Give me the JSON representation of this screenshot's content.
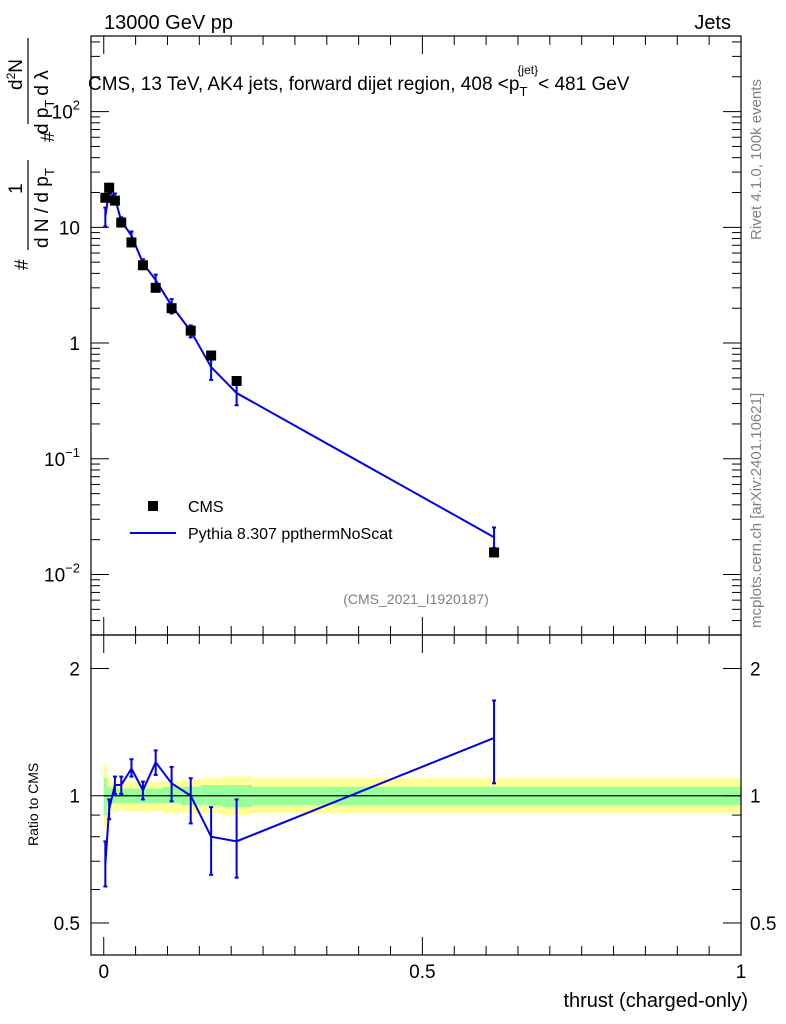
{
  "header": {
    "left": "13000 GeV pp",
    "right": "Jets"
  },
  "side_labels": {
    "rivet": "Rivet 4.1.0,  100k events",
    "mcplots": "mcplots.cern.ch [arXiv:2401.10621]"
  },
  "chart_data": [
    {
      "type": "scatter",
      "panel": "main",
      "title": "CMS, 13 TeV, AK4 jets, forward dijet region, 408 <p_T^{jet}< 481 GeV",
      "title_parts": {
        "pre": "CMS, 13 TeV, AK4 jets, forward dijet region, 408 <p",
        "sup": "{jet}",
        "sub": "T",
        "post": "< 481 GeV"
      },
      "ylabel": "1/dN/dp_T  d²N/dp_T dλ",
      "ylabel_parts": {
        "n1": "1",
        "d1": "d N / d p",
        "n2": "d",
        "n2s": "2",
        "n2b": "N",
        "d2": "d p",
        "d2b": "d λ",
        "sub": "T",
        "hash": "#"
      },
      "yscale": "log",
      "ylim": [
        0.003,
        450
      ],
      "xlim": [
        -0.02,
        1.0
      ],
      "y_ticks": [
        {
          "value": 100,
          "base": "10",
          "exp": "2"
        },
        {
          "value": 10,
          "base": "10",
          "exp": ""
        },
        {
          "value": 1,
          "base": "1",
          "exp": ""
        },
        {
          "value": 0.1,
          "base": "10",
          "exp": "−1"
        },
        {
          "value": 0.01,
          "base": "10",
          "exp": "−2"
        }
      ],
      "watermark": "(CMS_2021_I1920187)",
      "legend": {
        "position": "middle-left",
        "entries": [
          "CMS",
          "Pythia 8.307 ppthermNoScat"
        ]
      },
      "series": [
        {
          "name": "CMS",
          "style": "black-square-markers",
          "x": [
            0.0025,
            0.0085,
            0.0175,
            0.0275,
            0.0435,
            0.0615,
            0.0815,
            0.1065,
            0.1365,
            0.1685,
            0.2085,
            0.6125
          ],
          "y": [
            18.0,
            22.0,
            17.0,
            11.0,
            7.4,
            4.7,
            3.0,
            2.0,
            1.28,
            0.78,
            0.47,
            0.0155
          ]
        },
        {
          "name": "Pythia 8.307 ppthermNoScat",
          "style": "blue-line-with-errors",
          "x": [
            0.0025,
            0.0085,
            0.0175,
            0.0275,
            0.0435,
            0.0615,
            0.0815,
            0.1065,
            0.1365,
            0.1685,
            0.2085,
            0.6125
          ],
          "y": [
            12.5,
            20.5,
            18.0,
            11.3,
            8.5,
            4.9,
            3.5,
            2.1,
            1.27,
            0.62,
            0.37,
            0.021
          ],
          "yerr_low": [
            2.3,
            2.5,
            1.6,
            0.9,
            0.7,
            0.4,
            0.4,
            0.3,
            0.15,
            0.14,
            0.08,
            0.004
          ],
          "yerr_high": [
            2.3,
            2.5,
            1.6,
            0.9,
            0.7,
            0.4,
            0.4,
            0.3,
            0.15,
            0.14,
            0.08,
            0.0045
          ]
        }
      ]
    },
    {
      "type": "line",
      "panel": "ratio",
      "ylabel": "Ratio to CMS",
      "xlabel": "thrust (charged-only)",
      "yscale": "log",
      "ylim": [
        0.42,
        2.4
      ],
      "xlim": [
        -0.02,
        1.0
      ],
      "x_ticks": [
        0,
        0.5,
        1
      ],
      "x_tick_labels": [
        "0",
        "0.5",
        "1"
      ],
      "y_ticks": [
        0.5,
        1,
        2
      ],
      "y_tick_labels": [
        "0.5",
        "1",
        "2"
      ],
      "uncertainty_bands": {
        "edges": [
          0,
          0.005,
          0.012,
          0.023,
          0.033,
          0.053,
          0.071,
          0.093,
          0.121,
          0.153,
          0.185,
          0.233,
          1.0
        ],
        "yellow_low": [
          0.84,
          0.9,
          0.92,
          0.93,
          0.92,
          0.92,
          0.92,
          0.91,
          0.91,
          0.91,
          0.9,
          0.91
        ],
        "yellow_high": [
          1.19,
          1.1,
          1.08,
          1.08,
          1.08,
          1.08,
          1.08,
          1.08,
          1.09,
          1.1,
          1.11,
          1.1
        ],
        "green_low": [
          0.9,
          0.95,
          0.96,
          0.96,
          0.96,
          0.96,
          0.96,
          0.96,
          0.95,
          0.95,
          0.94,
          0.95
        ],
        "green_high": [
          1.1,
          1.05,
          1.04,
          1.04,
          1.04,
          1.04,
          1.04,
          1.05,
          1.05,
          1.06,
          1.06,
          1.05
        ],
        "colors": {
          "yellow": "#ffff99",
          "green": "#99ff99"
        }
      },
      "series": [
        {
          "name": "Pythia / CMS",
          "x": [
            0.0025,
            0.0085,
            0.0175,
            0.0275,
            0.0435,
            0.0615,
            0.0815,
            0.1065,
            0.1365,
            0.1685,
            0.2085,
            0.6125
          ],
          "y": [
            0.69,
            0.93,
            1.06,
            1.06,
            1.16,
            1.03,
            1.2,
            1.07,
            1.0,
            0.8,
            0.78,
            1.37
          ],
          "err_low": [
            0.08,
            0.05,
            0.05,
            0.05,
            0.05,
            0.05,
            0.08,
            0.1,
            0.14,
            0.15,
            0.14,
            0.3
          ],
          "err_high": [
            0.09,
            0.05,
            0.05,
            0.05,
            0.06,
            0.05,
            0.08,
            0.1,
            0.1,
            0.14,
            0.2,
            0.31
          ]
        }
      ]
    }
  ],
  "colors": {
    "mc": "#0000e6",
    "data": "#000000",
    "axis": "#000000",
    "watermark": "#808080"
  }
}
